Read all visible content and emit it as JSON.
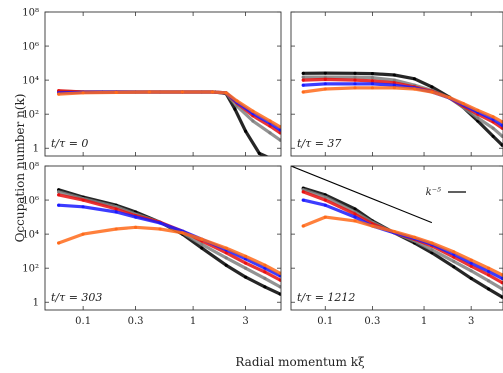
{
  "figure": {
    "xlabel": "Radial momentum kξ",
    "ylabel": "Occupation number n(k)"
  },
  "chart_data": [
    {
      "type": "scatter",
      "panel": "top-left",
      "label": "t/τ = 0",
      "xscale": "log",
      "yscale": "log",
      "xlim": [
        0.045,
        6.3
      ],
      "ylim": [
        0.35,
        100000000
      ],
      "xticks": [
        "0.1",
        "0.3",
        "1",
        "3"
      ],
      "yticks": [
        "1",
        "10²",
        "10⁴",
        "10⁶",
        "10⁸"
      ],
      "series": [
        {
          "color": "#000000",
          "x": [
            0.06,
            0.08,
            0.1,
            0.15,
            0.2,
            0.3,
            0.5,
            0.8,
            1.2,
            1.6,
            2.0,
            2.4,
            3.0,
            4.0,
            5.5
          ],
          "y": [
            2200,
            2100,
            2000,
            2000,
            2000,
            2000,
            2000,
            2000,
            2000,
            2000,
            1600,
            200,
            10,
            0.5,
            0.2
          ]
        },
        {
          "color": "#808080",
          "x": [
            0.06,
            0.1,
            0.2,
            0.4,
            0.8,
            1.5,
            2.0,
            2.5,
            3.5,
            5.0,
            6.2
          ],
          "y": [
            2300,
            2000,
            2000,
            2000,
            2000,
            2000,
            1700,
            300,
            40,
            8,
            3
          ]
        },
        {
          "color": "#e81010",
          "x": [
            0.06,
            0.1,
            0.2,
            0.4,
            0.8,
            1.5,
            2.0,
            2.5,
            3.5,
            5.0,
            6.2
          ],
          "y": [
            2400,
            2000,
            2000,
            2000,
            2000,
            2000,
            1800,
            450,
            80,
            20,
            8
          ]
        },
        {
          "color": "#1a1aff",
          "x": [
            0.06,
            0.1,
            0.2,
            0.4,
            0.8,
            1.5,
            2.0,
            2.5,
            3.5,
            5.0,
            6.2
          ],
          "y": [
            1800,
            1900,
            2000,
            2000,
            2000,
            2000,
            1800,
            500,
            110,
            30,
            12
          ]
        },
        {
          "color": "#ff6a1a",
          "x": [
            0.06,
            0.1,
            0.2,
            0.4,
            0.8,
            1.5,
            2.0,
            2.5,
            3.5,
            5.0,
            6.2
          ],
          "y": [
            1500,
            1800,
            1900,
            2000,
            2000,
            2000,
            1800,
            600,
            150,
            40,
            18
          ]
        }
      ]
    },
    {
      "type": "scatter",
      "panel": "top-right",
      "label": "t/τ = 37",
      "xscale": "log",
      "yscale": "log",
      "xlim": [
        0.045,
        6.3
      ],
      "ylim": [
        0.35,
        100000000
      ],
      "xticks": [
        "0.1",
        "0.3",
        "1",
        "3"
      ],
      "yticks": [],
      "series": [
        {
          "color": "#000000",
          "x": [
            0.06,
            0.1,
            0.2,
            0.3,
            0.5,
            0.8,
            1.2,
            1.8,
            2.5,
            3.5,
            5.0,
            6.2
          ],
          "y": [
            25000,
            26000,
            25000,
            24000,
            20000,
            12000,
            4000,
            1000,
            250,
            40,
            5,
            1.5
          ]
        },
        {
          "color": "#808080",
          "x": [
            0.06,
            0.1,
            0.2,
            0.3,
            0.5,
            0.8,
            1.2,
            1.8,
            2.5,
            3.5,
            5.0,
            6.2
          ],
          "y": [
            15000,
            15000,
            15000,
            14000,
            10000,
            5000,
            2500,
            900,
            250,
            60,
            15,
            5
          ]
        },
        {
          "color": "#e81010",
          "x": [
            0.06,
            0.1,
            0.2,
            0.3,
            0.5,
            0.8,
            1.2,
            1.8,
            2.5,
            3.5,
            5.0,
            6.2
          ],
          "y": [
            10000,
            11000,
            10000,
            9000,
            7000,
            4000,
            2200,
            900,
            300,
            100,
            35,
            15
          ]
        },
        {
          "color": "#1a1aff",
          "x": [
            0.06,
            0.1,
            0.2,
            0.3,
            0.5,
            0.8,
            1.2,
            1.8,
            2.5,
            3.5,
            5.0,
            6.2
          ],
          "y": [
            5000,
            6000,
            6000,
            6000,
            5000,
            3500,
            2000,
            900,
            350,
            130,
            50,
            22
          ]
        },
        {
          "color": "#ff6a1a",
          "x": [
            0.06,
            0.1,
            0.2,
            0.3,
            0.5,
            0.8,
            1.2,
            1.8,
            2.5,
            3.5,
            5.0,
            6.2
          ],
          "y": [
            2000,
            3000,
            3500,
            3500,
            3500,
            3000,
            2000,
            950,
            420,
            170,
            70,
            35
          ]
        }
      ]
    },
    {
      "type": "scatter",
      "panel": "bottom-left",
      "label": "t/τ = 303",
      "xscale": "log",
      "yscale": "log",
      "xlim": [
        0.045,
        6.3
      ],
      "ylim": [
        0.35,
        100000000
      ],
      "xticks": [
        "0.1",
        "0.3",
        "1",
        "3"
      ],
      "yticks": [
        "1",
        "10²",
        "10⁴",
        "10⁶",
        "10⁸"
      ],
      "series": [
        {
          "color": "#000000",
          "x": [
            0.06,
            0.1,
            0.2,
            0.3,
            0.5,
            0.8,
            1.2,
            2.0,
            3.0,
            4.5,
            6.2
          ],
          "y": [
            4000000,
            1500000,
            500000,
            200000,
            50000,
            10000,
            1500,
            150,
            30,
            8,
            3
          ]
        },
        {
          "color": "#808080",
          "x": [
            0.06,
            0.1,
            0.2,
            0.3,
            0.5,
            0.8,
            1.2,
            2.0,
            3.0,
            4.5,
            6.2
          ],
          "y": [
            3000000,
            1200000,
            400000,
            150000,
            50000,
            12000,
            2500,
            400,
            100,
            25,
            8
          ]
        },
        {
          "color": "#e81010",
          "x": [
            0.06,
            0.1,
            0.2,
            0.3,
            0.5,
            0.8,
            1.2,
            2.0,
            3.0,
            4.5,
            6.2
          ],
          "y": [
            2000000,
            1000000,
            300000,
            120000,
            50000,
            15000,
            4000,
            800,
            200,
            60,
            20
          ]
        },
        {
          "color": "#1a1aff",
          "x": [
            0.06,
            0.1,
            0.2,
            0.3,
            0.5,
            0.8,
            1.2,
            2.0,
            3.0,
            4.5,
            6.2
          ],
          "y": [
            500000,
            400000,
            200000,
            100000,
            45000,
            15000,
            5000,
            1200,
            350,
            100,
            35
          ]
        },
        {
          "color": "#ff6a1a",
          "x": [
            0.06,
            0.1,
            0.2,
            0.3,
            0.5,
            0.8,
            1.2,
            2.0,
            3.0,
            4.5,
            6.2
          ],
          "y": [
            3000,
            10000,
            20000,
            25000,
            20000,
            12000,
            5000,
            1500,
            500,
            150,
            50
          ]
        }
      ]
    },
    {
      "type": "scatter",
      "panel": "bottom-right",
      "label": "t/τ = 1212",
      "xscale": "log",
      "yscale": "log",
      "xlim": [
        0.045,
        6.3
      ],
      "ylim": [
        0.35,
        100000000
      ],
      "xticks": [
        "0.1",
        "0.3",
        "1",
        "3"
      ],
      "yticks": [],
      "reference_line": {
        "label": "k⁻⁵",
        "x": [
          0.045,
          1.2
        ],
        "y": [
          100000000,
          47000
        ]
      },
      "series": [
        {
          "color": "#000000",
          "x": [
            0.06,
            0.1,
            0.2,
            0.3,
            0.5,
            0.8,
            1.2,
            2.0,
            3.0,
            4.5,
            6.2
          ],
          "y": [
            5000000,
            2000000,
            300000,
            60000,
            12000,
            3000,
            800,
            120,
            25,
            6,
            2
          ]
        },
        {
          "color": "#808080",
          "x": [
            0.06,
            0.1,
            0.2,
            0.3,
            0.5,
            0.8,
            1.2,
            2.0,
            3.0,
            4.5,
            6.2
          ],
          "y": [
            4000000,
            1500000,
            200000,
            50000,
            12000,
            4000,
            1200,
            250,
            70,
            18,
            6
          ]
        },
        {
          "color": "#e81010",
          "x": [
            0.06,
            0.1,
            0.2,
            0.3,
            0.5,
            0.8,
            1.2,
            2.0,
            3.0,
            4.5,
            6.2
          ],
          "y": [
            3000000,
            1000000,
            150000,
            40000,
            12000,
            5000,
            2000,
            450,
            130,
            40,
            14
          ]
        },
        {
          "color": "#1a1aff",
          "x": [
            0.06,
            0.1,
            0.2,
            0.3,
            0.5,
            0.8,
            1.2,
            2.0,
            3.0,
            4.5,
            6.2
          ],
          "y": [
            1000000,
            500000,
            100000,
            30000,
            12000,
            5500,
            2500,
            650,
            200,
            65,
            25
          ]
        },
        {
          "color": "#ff6a1a",
          "x": [
            0.06,
            0.1,
            0.2,
            0.3,
            0.5,
            0.8,
            1.2,
            2.0,
            3.0,
            4.5,
            6.2
          ],
          "y": [
            30000,
            100000,
            60000,
            30000,
            14000,
            6500,
            3000,
            900,
            300,
            100,
            40
          ]
        }
      ]
    }
  ]
}
